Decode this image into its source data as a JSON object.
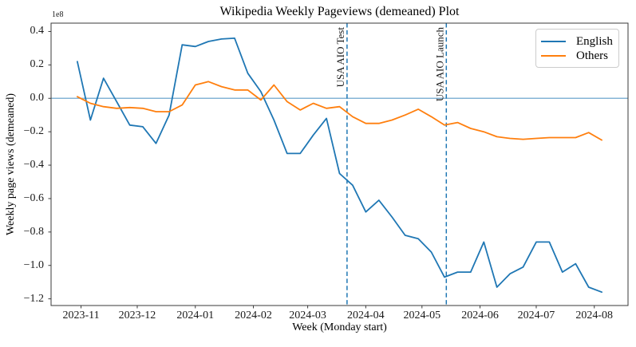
{
  "chart_data": {
    "type": "line",
    "title": "Wikipedia Weekly Pageviews (demeaned) Plot",
    "xlabel": "Week (Monday start)",
    "ylabel": "Weekly page views (demeaned)",
    "y_offset_text": "1e8",
    "y_unit_multiplier": 100000000,
    "grid": false,
    "legend_position": "upper right",
    "xlim": [
      "2023-10-16",
      "2024-08-19"
    ],
    "ylim": [
      -1.24,
      0.45
    ],
    "x_ticks": [
      {
        "label": "2023-11",
        "date": "2023-11-01"
      },
      {
        "label": "2023-12",
        "date": "2023-12-01"
      },
      {
        "label": "2024-01",
        "date": "2024-01-01"
      },
      {
        "label": "2024-02",
        "date": "2024-02-01"
      },
      {
        "label": "2024-03",
        "date": "2024-03-01"
      },
      {
        "label": "2024-04",
        "date": "2024-04-01"
      },
      {
        "label": "2024-05",
        "date": "2024-05-01"
      },
      {
        "label": "2024-06",
        "date": "2024-06-01"
      },
      {
        "label": "2024-07",
        "date": "2024-07-01"
      },
      {
        "label": "2024-08",
        "date": "2024-08-01"
      }
    ],
    "y_ticks": [
      0.4,
      0.2,
      0.0,
      -0.2,
      -0.4,
      -0.6,
      -0.8,
      -1.0,
      -1.2
    ],
    "x": [
      "2023-10-30",
      "2023-11-06",
      "2023-11-13",
      "2023-11-20",
      "2023-11-27",
      "2023-12-04",
      "2023-12-11",
      "2023-12-18",
      "2023-12-25",
      "2024-01-01",
      "2024-01-08",
      "2024-01-15",
      "2024-01-22",
      "2024-01-29",
      "2024-02-05",
      "2024-02-12",
      "2024-02-19",
      "2024-02-26",
      "2024-03-04",
      "2024-03-11",
      "2024-03-18",
      "2024-03-25",
      "2024-04-01",
      "2024-04-08",
      "2024-04-15",
      "2024-04-22",
      "2024-04-29",
      "2024-05-06",
      "2024-05-13",
      "2024-05-20",
      "2024-05-27",
      "2024-06-03",
      "2024-06-10",
      "2024-06-17",
      "2024-06-24",
      "2024-07-01",
      "2024-07-08",
      "2024-07-15",
      "2024-07-22",
      "2024-07-29",
      "2024-08-05"
    ],
    "series": [
      {
        "name": "English",
        "color": "#1f77b4",
        "values": [
          0.22,
          -0.13,
          0.12,
          -0.02,
          -0.16,
          -0.17,
          -0.27,
          -0.1,
          0.32,
          0.31,
          0.34,
          0.355,
          0.36,
          0.15,
          0.04,
          -0.13,
          -0.33,
          -0.33,
          -0.22,
          -0.12,
          -0.45,
          -0.52,
          -0.68,
          -0.61,
          -0.71,
          -0.82,
          -0.84,
          -0.92,
          -1.07,
          -1.04,
          -1.04,
          -0.86,
          -1.13,
          -1.05,
          -1.01,
          -0.86,
          -0.86,
          -1.04,
          -0.99,
          -1.13,
          -1.16
        ]
      },
      {
        "name": "Others",
        "color": "#ff7f0e",
        "values": [
          0.01,
          -0.03,
          -0.05,
          -0.06,
          -0.055,
          -0.06,
          -0.08,
          -0.08,
          -0.04,
          0.08,
          0.1,
          0.07,
          0.05,
          0.05,
          -0.01,
          0.08,
          -0.02,
          -0.07,
          -0.03,
          -0.06,
          -0.05,
          -0.11,
          -0.15,
          -0.15,
          -0.13,
          -0.1,
          -0.065,
          -0.11,
          -0.16,
          -0.145,
          -0.18,
          -0.2,
          -0.23,
          -0.24,
          -0.245,
          -0.24,
          -0.235,
          -0.235,
          -0.235,
          -0.205,
          -0.25
        ]
      }
    ],
    "reference_lines": {
      "zero_line": {
        "y": 0.0,
        "color": "#1f77b4",
        "opacity": 0.55,
        "style": "solid"
      },
      "events": [
        {
          "label": "USA AIO Test",
          "date": "2024-03-22",
          "color": "#1f77b4",
          "style": "dashed"
        },
        {
          "label": "USA AIO Launch",
          "date": "2024-05-14",
          "color": "#1f77b4",
          "style": "dashed"
        }
      ]
    }
  }
}
